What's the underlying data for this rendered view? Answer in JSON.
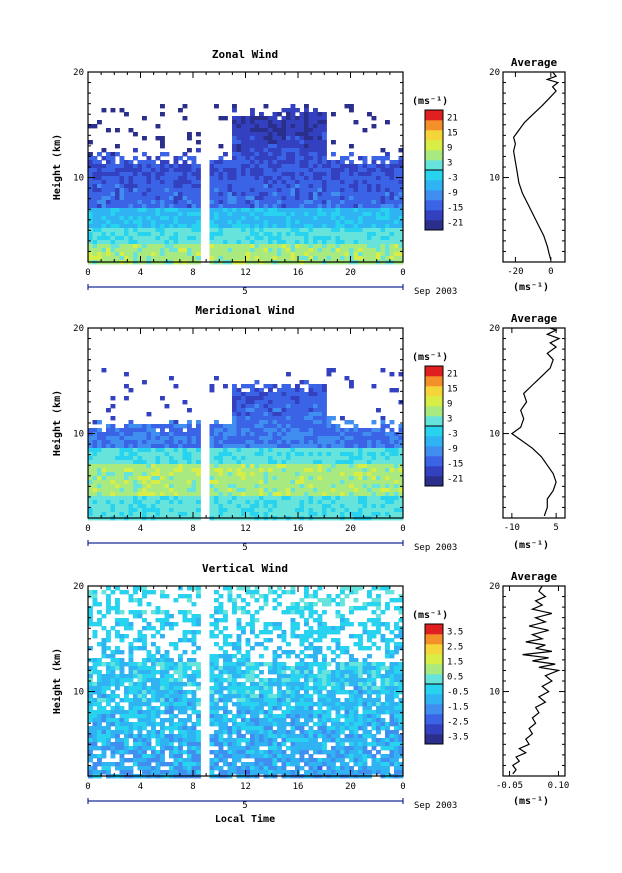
{
  "chart_data": [
    {
      "type": "heatmap",
      "title": "Zonal Wind",
      "ylabel": "Height (km)",
      "xlabel": "",
      "xlim": [
        0,
        24
      ],
      "ylim": [
        2,
        20
      ],
      "x_ticks": [
        "0",
        "4",
        "8",
        "12",
        "16",
        "20",
        "0"
      ],
      "y_ticks": [
        "20",
        "10"
      ],
      "date_marker": "5",
      "date_label": "Sep 2003",
      "colorbar": {
        "unit": "(ms⁻¹)",
        "ticks": [
          "21",
          "15",
          "9",
          "3",
          "-3",
          "-9",
          "-15",
          "-21"
        ],
        "range": [
          -24,
          24
        ]
      },
      "profile": {
        "title": "Average",
        "xlabel": "(ms⁻¹)",
        "x_ticks": [
          "-20",
          "0"
        ],
        "y_ticks": [
          "20",
          "10"
        ],
        "xlim": [
          -27,
          8
        ],
        "ylim": [
          2,
          20
        ],
        "points": [
          [
            0,
            2.2
          ],
          [
            -1,
            2.8
          ],
          [
            -2,
            3.5
          ],
          [
            -4,
            4.5
          ],
          [
            -7,
            5.5
          ],
          [
            -10,
            6.5
          ],
          [
            -13,
            7.5
          ],
          [
            -16,
            8.5
          ],
          [
            -18,
            9.5
          ],
          [
            -19,
            10.5
          ],
          [
            -20,
            11.5
          ],
          [
            -21,
            12.5
          ],
          [
            -20,
            13.2
          ],
          [
            -21,
            13.8
          ],
          [
            -18,
            14.5
          ],
          [
            -15,
            15.2
          ],
          [
            -10,
            16.0
          ],
          [
            -5,
            16.8
          ],
          [
            -1,
            17.5
          ],
          [
            3,
            18.2
          ],
          [
            1,
            18.6
          ],
          [
            4,
            19.0
          ],
          [
            -2,
            19.3
          ],
          [
            3,
            19.6
          ],
          [
            1,
            20.0
          ]
        ]
      }
    },
    {
      "type": "heatmap",
      "title": "Meridional Wind",
      "ylabel": "Height (km)",
      "xlabel": "",
      "xlim": [
        0,
        24
      ],
      "ylim": [
        2,
        20
      ],
      "x_ticks": [
        "0",
        "4",
        "8",
        "12",
        "16",
        "20",
        "0"
      ],
      "y_ticks": [
        "20",
        "10"
      ],
      "date_marker": "5",
      "date_label": "Sep 2003",
      "colorbar": {
        "unit": "(ms⁻¹)",
        "ticks": [
          "21",
          "15",
          "9",
          "3",
          "-3",
          "-9",
          "-15",
          "-21"
        ],
        "range": [
          -24,
          24
        ]
      },
      "profile": {
        "title": "Average",
        "xlabel": "(ms⁻¹)",
        "x_ticks": [
          "-10",
          "5"
        ],
        "y_ticks": [
          "20",
          "10"
        ],
        "xlim": [
          -13,
          8
        ],
        "ylim": [
          2,
          20
        ],
        "points": [
          [
            1,
            2.2
          ],
          [
            2,
            3.0
          ],
          [
            2,
            3.8
          ],
          [
            4,
            4.6
          ],
          [
            5,
            5.4
          ],
          [
            4,
            6.2
          ],
          [
            2,
            7.0
          ],
          [
            0,
            7.8
          ],
          [
            -3,
            8.6
          ],
          [
            -7,
            9.4
          ],
          [
            -10,
            10.0
          ],
          [
            -7,
            10.6
          ],
          [
            -6,
            11.4
          ],
          [
            -7,
            12.2
          ],
          [
            -5,
            13.0
          ],
          [
            -6,
            13.8
          ],
          [
            -3,
            14.6
          ],
          [
            0,
            15.4
          ],
          [
            3,
            16.2
          ],
          [
            4,
            17.0
          ],
          [
            2,
            17.6
          ],
          [
            5,
            18.2
          ],
          [
            3,
            18.6
          ],
          [
            6,
            19.0
          ],
          [
            2,
            19.4
          ],
          [
            5,
            19.8
          ],
          [
            3,
            20.0
          ]
        ]
      }
    },
    {
      "type": "heatmap",
      "title": "Vertical Wind",
      "ylabel": "Height (km)",
      "xlabel": "Local Time",
      "xlim": [
        0,
        24
      ],
      "ylim": [
        2,
        20
      ],
      "x_ticks": [
        "0",
        "4",
        "8",
        "12",
        "16",
        "20",
        "0"
      ],
      "y_ticks": [
        "20",
        "10"
      ],
      "date_marker": "5",
      "date_label": "Sep 2003",
      "colorbar": {
        "unit": "(ms⁻¹)",
        "ticks": [
          "3.5",
          "2.5",
          "1.5",
          "0.5",
          "-0.5",
          "-1.5",
          "-2.5",
          "-3.5"
        ],
        "range": [
          -4,
          4
        ]
      },
      "profile": {
        "title": "Average",
        "xlabel": "(ms⁻¹)",
        "x_ticks": [
          "-0.05",
          "0.10"
        ],
        "y_ticks": [
          "20",
          "10"
        ],
        "xlim": [
          -0.07,
          0.12
        ],
        "ylim": [
          2,
          20
        ],
        "points": [
          [
            -0.04,
            2.2
          ],
          [
            -0.03,
            2.6
          ],
          [
            -0.04,
            3.0
          ],
          [
            -0.02,
            3.4
          ],
          [
            -0.03,
            3.8
          ],
          [
            0.0,
            4.2
          ],
          [
            -0.02,
            4.6
          ],
          [
            0.01,
            5.0
          ],
          [
            0.0,
            5.5
          ],
          [
            0.02,
            6.0
          ],
          [
            0.01,
            6.5
          ],
          [
            0.03,
            7.0
          ],
          [
            0.02,
            7.5
          ],
          [
            0.04,
            8.0
          ],
          [
            0.03,
            8.5
          ],
          [
            0.06,
            9.0
          ],
          [
            0.04,
            9.5
          ],
          [
            0.07,
            10.0
          ],
          [
            0.05,
            10.5
          ],
          [
            0.08,
            11.0
          ],
          [
            0.06,
            11.5
          ],
          [
            0.1,
            12.0
          ],
          [
            0.04,
            12.3
          ],
          [
            0.09,
            12.6
          ],
          [
            0.02,
            12.9
          ],
          [
            0.07,
            13.2
          ],
          [
            -0.01,
            13.5
          ],
          [
            0.08,
            13.8
          ],
          [
            0.03,
            14.1
          ],
          [
            0.06,
            14.4
          ],
          [
            0.0,
            14.7
          ],
          [
            0.05,
            15.0
          ],
          [
            0.02,
            15.4
          ],
          [
            0.07,
            15.8
          ],
          [
            0.01,
            16.2
          ],
          [
            0.06,
            16.6
          ],
          [
            0.03,
            17.0
          ],
          [
            0.08,
            17.4
          ],
          [
            0.02,
            17.8
          ],
          [
            0.05,
            18.2
          ],
          [
            0.03,
            18.6
          ],
          [
            0.06,
            19.0
          ],
          [
            0.04,
            19.5
          ],
          [
            0.05,
            20.0
          ]
        ]
      }
    }
  ]
}
